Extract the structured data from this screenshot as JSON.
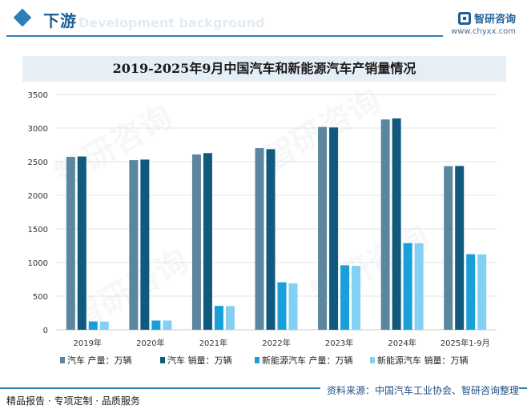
{
  "header": {
    "section_title": "下游",
    "background_text": "Development background",
    "brand_name": "智研咨询",
    "brand_url": "www.chyxx.com"
  },
  "chart_data": {
    "type": "bar",
    "title": "2019-2025年9月中国汽车和新能源汽车产销量情况",
    "categories": [
      "2019年",
      "2020年",
      "2021年",
      "2022年",
      "2023年",
      "2024年",
      "2025年1-9月"
    ],
    "ylim": [
      0,
      3500
    ],
    "yticks": [
      0,
      500,
      1000,
      1500,
      2000,
      2500,
      3000,
      3500
    ],
    "grid": true,
    "legend_position": "bottom",
    "series": [
      {
        "name": "汽车 产量：万辆",
        "color": "#5b86a0",
        "values": [
          2572,
          2523,
          2608,
          2702,
          3016,
          3128,
          2434
        ]
      },
      {
        "name": "汽车 销量：万辆",
        "color": "#0f5a7d",
        "values": [
          2577,
          2531,
          2628,
          2686,
          3009,
          3144,
          2436
        ]
      },
      {
        "name": "新能源汽车 产量：万辆",
        "color": "#1a9fd8",
        "values": [
          124,
          137,
          355,
          706,
          959,
          1289,
          1124
        ]
      },
      {
        "name": "新能源汽车 销量：万辆",
        "color": "#84d0f2",
        "values": [
          121,
          137,
          352,
          689,
          950,
          1287,
          1122
        ]
      }
    ]
  },
  "footer": {
    "left_text": "精品报告 · 专项定制 · 品质服务",
    "source_text": "资料来源：中国汽车工业协会、智研咨询整理"
  }
}
